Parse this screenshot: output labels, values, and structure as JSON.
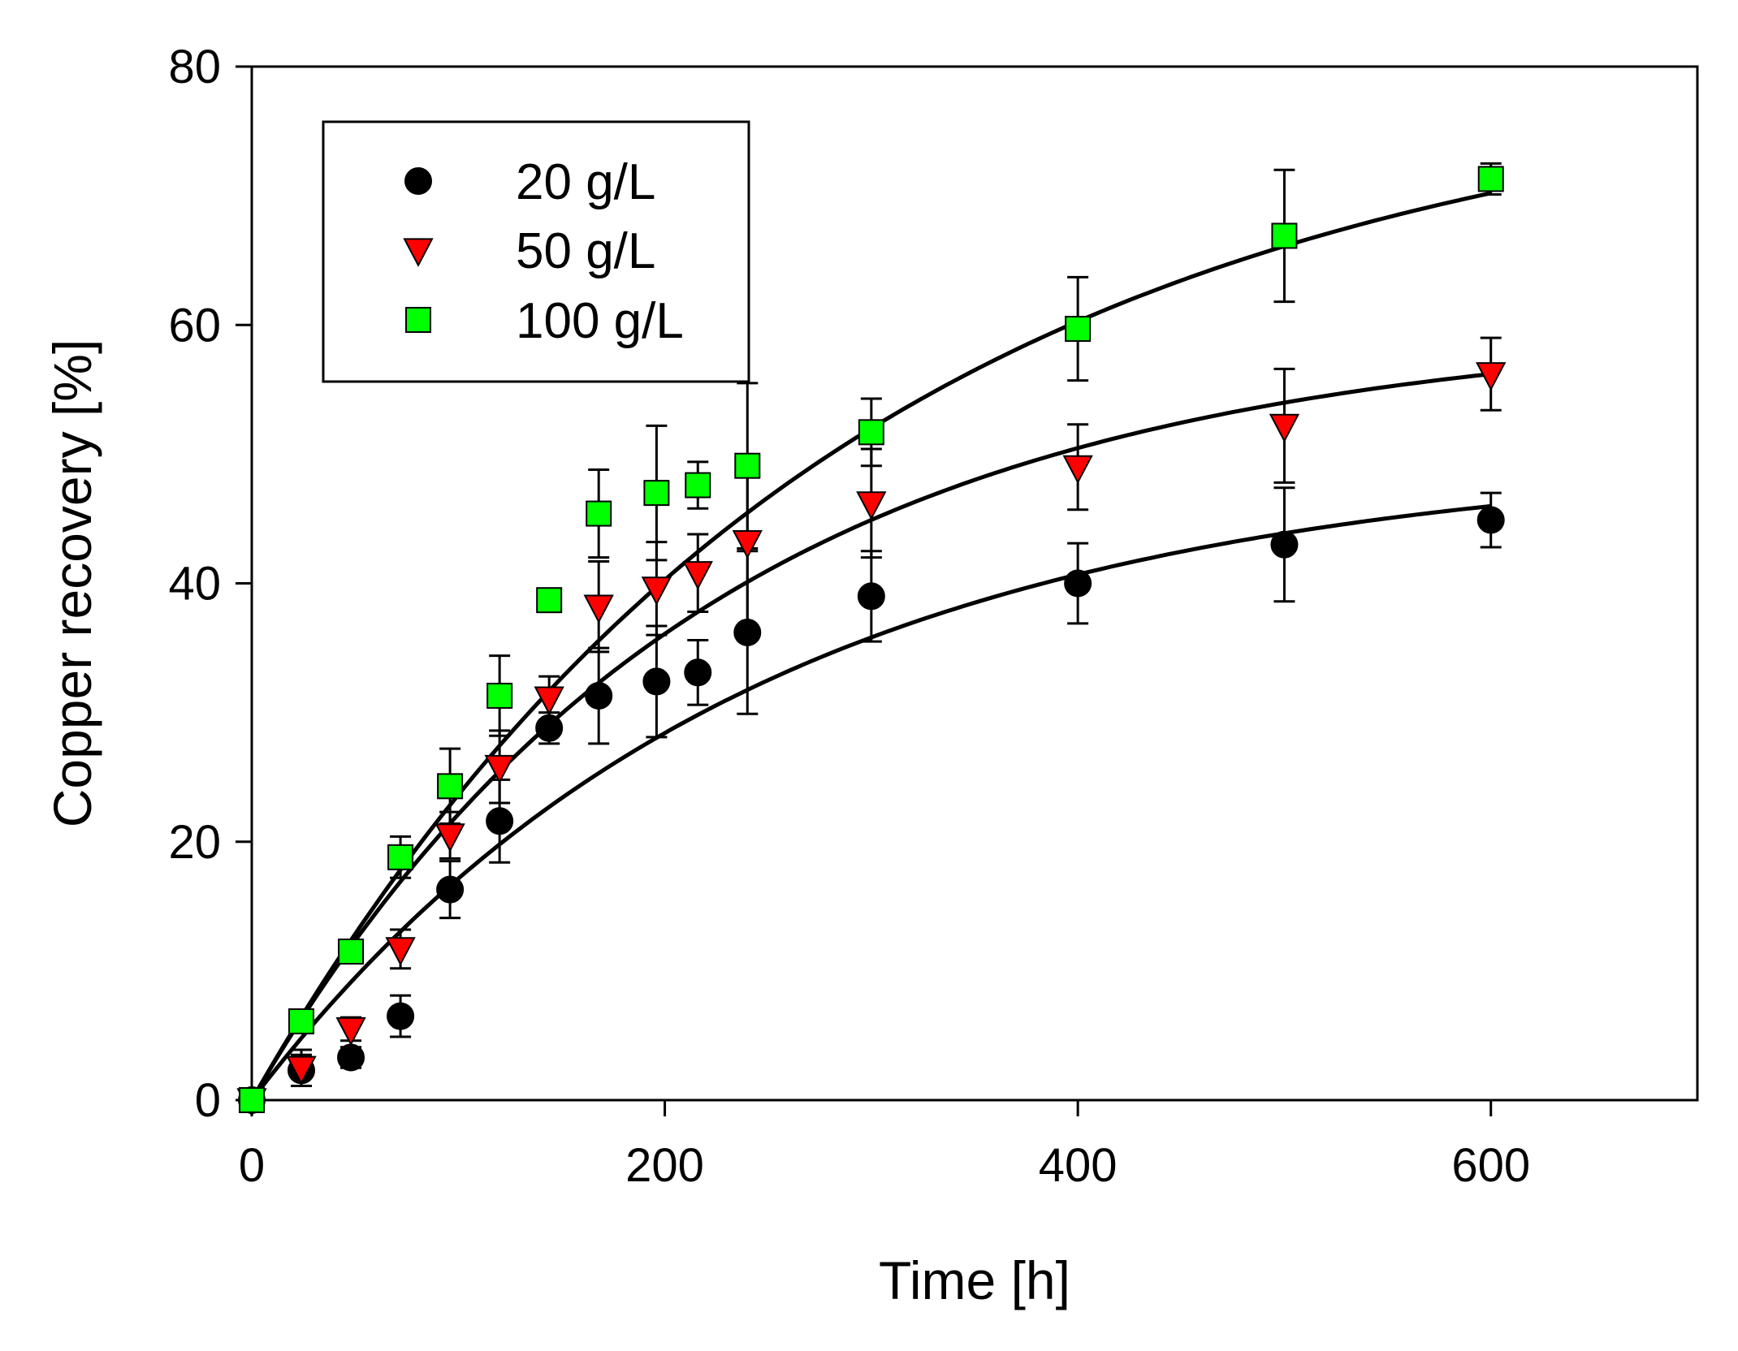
{
  "chart_data": {
    "type": "scatter",
    "xlabel": "Time [h]",
    "ylabel": "Copper recovery [%]",
    "xlim": [
      0,
      700
    ],
    "ylim": [
      0,
      80
    ],
    "xticks": [
      0,
      200,
      400,
      600
    ],
    "yticks": [
      0,
      20,
      40,
      60,
      80
    ],
    "grid": false,
    "legend_position": "top-left",
    "x": [
      0,
      24,
      48,
      72,
      96,
      120,
      144,
      168,
      196,
      216,
      240,
      300,
      400,
      500,
      600
    ],
    "series": [
      {
        "name": "20 g/L",
        "marker": "circle",
        "color": "#000000",
        "values": [
          0,
          2.3,
          3.3,
          6.5,
          16.3,
          21.6,
          28.8,
          31.3,
          32.4,
          33.1,
          36.2,
          39.0,
          40.0,
          43.0,
          44.9
        ],
        "errors": [
          0,
          1.2,
          0.8,
          1.6,
          2.2,
          3.2,
          1.2,
          3.7,
          4.3,
          2.5,
          6.3,
          3.5,
          3.1,
          4.4,
          2.1
        ],
        "fit": {
          "a": 50,
          "k": 0.0042
        }
      },
      {
        "name": "50 g/L",
        "marker": "triangle-down",
        "color": "#ff0000",
        "values": [
          0,
          2.5,
          5.5,
          11.7,
          20.5,
          25.8,
          31.1,
          38.2,
          39.6,
          40.8,
          43.2,
          46.2,
          49.0,
          52.2,
          56.2
        ],
        "errors": [
          0,
          1.4,
          0.9,
          1.5,
          1.8,
          2.8,
          1.7,
          3.5,
          3.6,
          3.0,
          6.5,
          4.2,
          3.3,
          4.4,
          2.8
        ],
        "fit": {
          "a": 60,
          "k": 0.0046
        }
      },
      {
        "name": "100 g/L",
        "marker": "square",
        "color": "#00ff00",
        "values": [
          0,
          6.1,
          11.5,
          18.8,
          24.3,
          31.3,
          38.7,
          45.4,
          47.0,
          47.6,
          49.1,
          51.7,
          59.7,
          66.9,
          71.3
        ],
        "errors": [
          0,
          0.5,
          0.4,
          1.6,
          2.9,
          3.1,
          0.7,
          3.4,
          5.2,
          1.8,
          6.4,
          2.6,
          4.0,
          5.1,
          1.2
        ],
        "fit": {
          "a": 80,
          "k": 0.0035
        }
      }
    ]
  }
}
